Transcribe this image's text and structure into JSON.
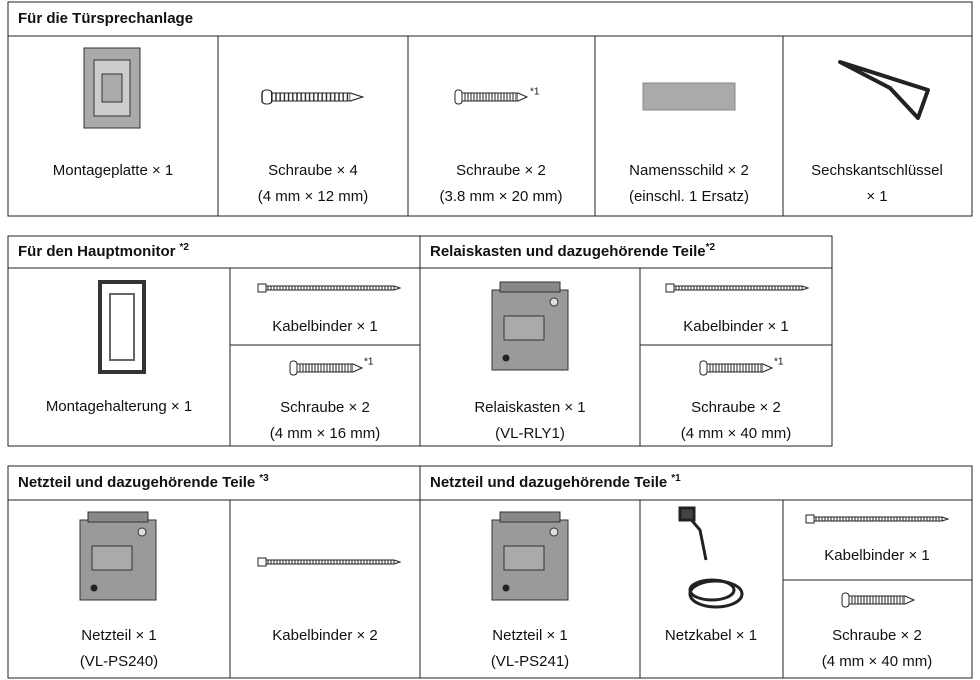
{
  "sections": [
    {
      "headers": [
        {
          "title": "Für die Türsprechanlage"
        }
      ],
      "items": [
        {
          "label": "Montageplatte × 1"
        },
        {
          "label": "Schraube × 4",
          "detail": "(4 mm × 12 mm)"
        },
        {
          "label": "Schraube × 2",
          "detail": "(3.8 mm × 20 mm)",
          "note": "*1"
        },
        {
          "label": "Namensschild × 2",
          "detail": "(einschl. 1 Ersatz)"
        },
        {
          "label": "Sechskantschlüssel",
          "detail": "× 1"
        }
      ]
    },
    {
      "headers": [
        {
          "title": "Für den Hauptmonitor",
          "note": "*2"
        },
        {
          "title": "Relaiskasten und dazugehörende Teile",
          "note": "*2"
        }
      ],
      "items": [
        {
          "label": "Montagehalterung × 1"
        },
        {
          "label": "Kabelbinder × 1"
        },
        {
          "label": "Schraube × 2",
          "detail": "(4 mm × 16 mm)",
          "note": "*1"
        },
        {
          "label": "Relaiskasten × 1",
          "detail": "(VL-RLY1)"
        },
        {
          "label": "Kabelbinder × 1"
        },
        {
          "label": "Schraube × 2",
          "detail": "(4 mm × 40 mm)",
          "note": "*1"
        }
      ]
    },
    {
      "headers": [
        {
          "title": "Netzteil und dazugehörende Teile",
          "note": "*3"
        },
        {
          "title": "Netzteil und dazugehörende Teile",
          "note": "*1"
        }
      ],
      "items": [
        {
          "label": "Netzteil × 1",
          "detail": "(VL-PS240)"
        },
        {
          "label": "Kabelbinder × 2"
        },
        {
          "label": "Netzteil × 1",
          "detail": "(VL-PS241)"
        },
        {
          "label": "Netzkabel × 1"
        },
        {
          "label": "Kabelbinder × 1"
        },
        {
          "label": "Schraube × 2",
          "detail": "(4 mm × 40 mm)"
        }
      ]
    }
  ]
}
